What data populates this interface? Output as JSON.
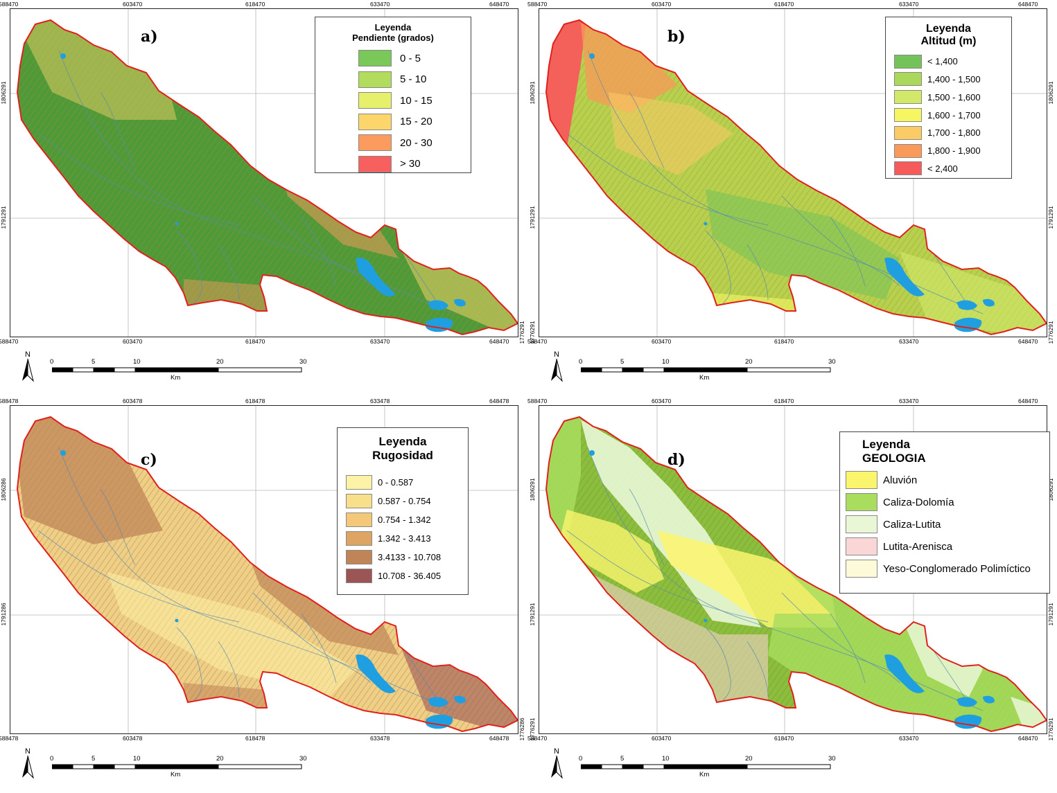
{
  "panels": [
    {
      "id": "a",
      "label": "a)",
      "legend": {
        "title_line1": "Leyenda",
        "title_line2": "Pendiente (grados)",
        "items": [
          {
            "label": "0 - 5",
            "color": "#7ac75a"
          },
          {
            "label": "5 - 10",
            "color": "#b2dc5e"
          },
          {
            "label": "10 - 15",
            "color": "#e6f06a"
          },
          {
            "label": "15 - 20",
            "color": "#fcd66a"
          },
          {
            "label": "20 - 30",
            "color": "#fb9c5e"
          },
          {
            "label": "> 30",
            "color": "#f85f5f"
          }
        ]
      },
      "fill": "#4f9a38",
      "relief": "#b88a3a",
      "x_top": [
        "588470",
        "603470",
        "618470",
        "633470",
        "648470"
      ],
      "x_bottom": [
        "588470",
        "603470",
        "618470",
        "633470",
        "648470"
      ],
      "y_left": [
        "1806291",
        "1791291"
      ],
      "y_right": [
        "1776291"
      ]
    },
    {
      "id": "b",
      "label": "b)",
      "legend": {
        "title_line1": "Leyenda",
        "title_line2": "Altitud (m)",
        "items": [
          {
            "label": "< 1,400",
            "color": "#74c25a"
          },
          {
            "label": "1,400 - 1,500",
            "color": "#a9d85c"
          },
          {
            "label": "1,500 - 1,600",
            "color": "#d2e86a"
          },
          {
            "label": "1,600 - 1,700",
            "color": "#f6f562"
          },
          {
            "label": "1,700 - 1,800",
            "color": "#fbcb66"
          },
          {
            "label": "1,800 - 1,900",
            "color": "#f99a5a"
          },
          {
            "label": "< 2,400",
            "color": "#f65b5b"
          }
        ]
      },
      "fill": "#b9cf4e",
      "relief": "#7b9a2e",
      "x_top": [
        "588470",
        "603470",
        "618470",
        "633470",
        "648470"
      ],
      "x_bottom": [
        "588470",
        "603470",
        "618470",
        "633470",
        "648470"
      ],
      "y_left": [
        "1806291",
        "1791291",
        "1776291"
      ],
      "y_right": [
        "1806291",
        "1791291",
        "1776291"
      ]
    },
    {
      "id": "c",
      "label": "c)",
      "legend": {
        "title_line1": "Leyenda",
        "title_line2": "Rugosidad",
        "items": [
          {
            "label": "0 - 0.587",
            "color": "#fdf3a6"
          },
          {
            "label": "0.587 - 0.754",
            "color": "#f8df8c"
          },
          {
            "label": "0.754 - 1.342",
            "color": "#f3c878"
          },
          {
            "label": "1.342 - 3.413",
            "color": "#dea463"
          },
          {
            "label": "3.4133 - 10.708",
            "color": "#bf8457"
          },
          {
            "label": "10.708 - 36.405",
            "color": "#9b5555"
          }
        ]
      },
      "fill": "#efcf86",
      "relief": "#9a6a3a",
      "x_top": [
        "588478",
        "603478",
        "618478",
        "633478",
        "648478"
      ],
      "x_bottom": [
        "588478",
        "603478",
        "618478",
        "633478",
        "648478"
      ],
      "y_left": [
        "1806286",
        "1791286"
      ],
      "y_right": [
        "1776286"
      ]
    },
    {
      "id": "d",
      "label": "d)",
      "legend": {
        "title_line1": "Leyenda",
        "title_line2": "GEOLOGIA",
        "items": [
          {
            "label": "Aluvión",
            "color": "#fbf56e"
          },
          {
            "label": "Caliza-Dolomía",
            "color": "#a8dd5e"
          },
          {
            "label": "Caliza-Lutita",
            "color": "#e9f7d6"
          },
          {
            "label": "Lutita-Arenisca",
            "color": "#fbd6d6"
          },
          {
            "label": "Yeso-Conglomerado Polimíctico",
            "color": "#fcfad9"
          }
        ]
      },
      "fill": "#8dbd3c",
      "relief": "#5d8a2a",
      "x_top": [
        "588470",
        "603470",
        "618470",
        "633470",
        "648470"
      ],
      "x_bottom": [
        "588470",
        "603470",
        "618470",
        "633470",
        "648470"
      ],
      "y_left": [
        "1806291",
        "1791291",
        "1776291"
      ],
      "y_right": [
        "1806291",
        "1791291",
        "1776291"
      ]
    }
  ],
  "scalebar": {
    "north_label": "N",
    "ticks": [
      "0",
      "5",
      "10",
      "20",
      "30"
    ],
    "unit": "Km"
  },
  "colors": {
    "boundary": "#e0201c",
    "water": "#1f9fe0",
    "stream": "#5a8ab0"
  }
}
